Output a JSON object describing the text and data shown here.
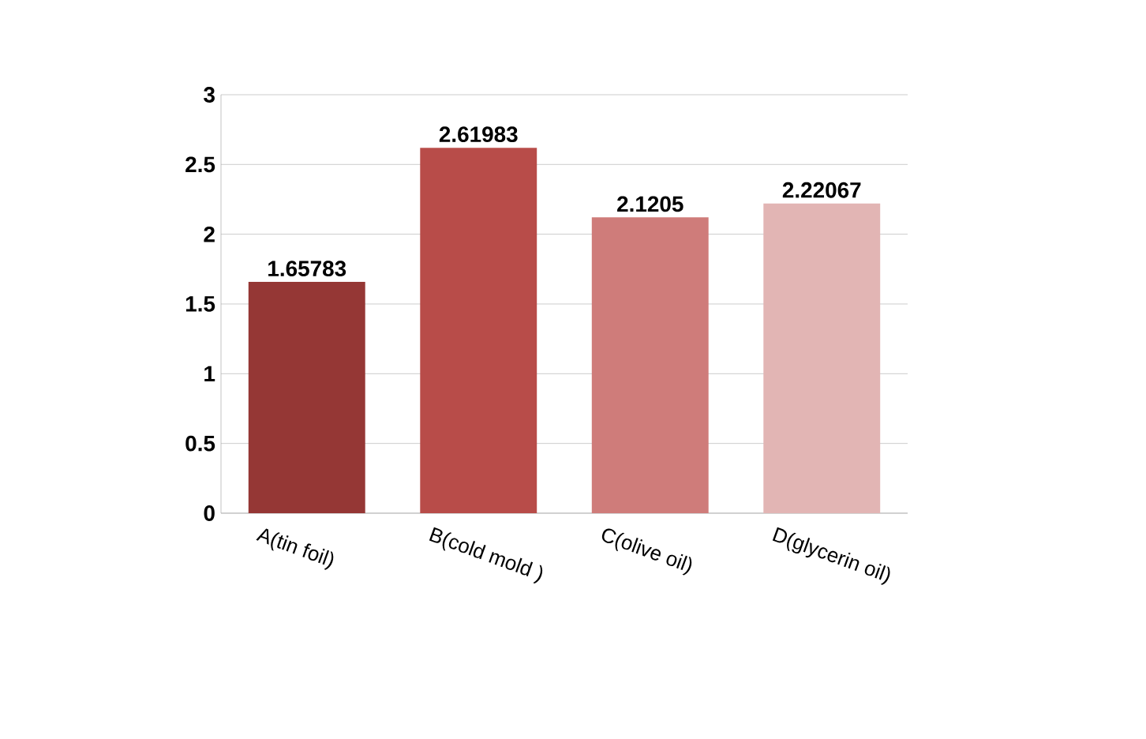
{
  "chart_data": {
    "type": "bar",
    "categories": [
      "A(tin foil)",
      "B(cold mold )",
      "C(olive oil)",
      "D(glycerin oil)"
    ],
    "values": [
      1.65783,
      2.61983,
      2.1205,
      2.22067
    ],
    "colors": [
      "#953735",
      "#b84c49",
      "#cf7c7a",
      "#e2b5b4"
    ],
    "ylim": [
      0,
      3
    ],
    "yticks": [
      0,
      0.5,
      1,
      1.5,
      2,
      2.5,
      3
    ],
    "grid": "y",
    "data_labels": true
  }
}
